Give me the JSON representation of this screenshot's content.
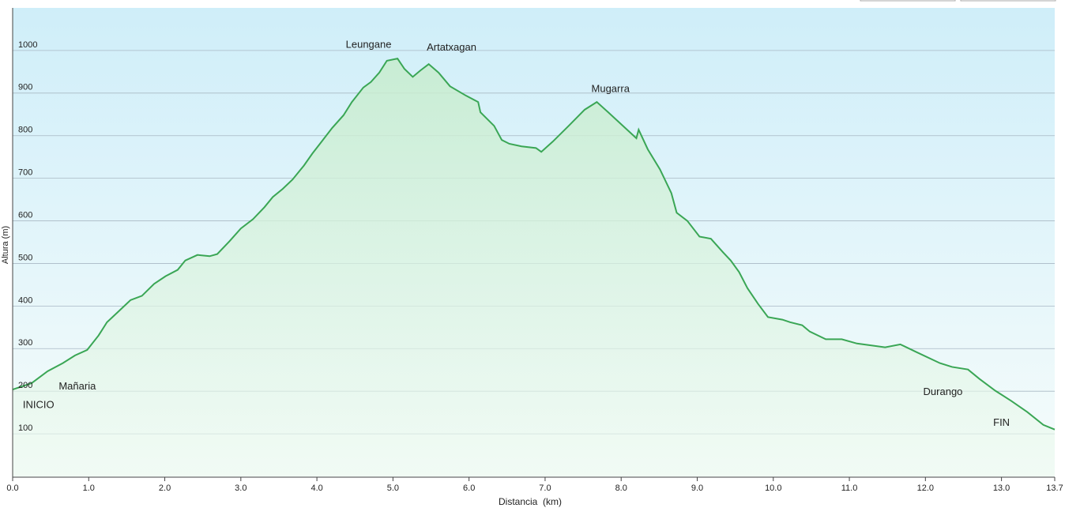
{
  "chart_data": {
    "type": "area",
    "x_label": "Distancia  (km)",
    "y_label": "Altura (m)",
    "xlim": [
      0,
      13.7
    ],
    "ylim": [
      0,
      1100
    ],
    "xticks": [
      {
        "value": 0,
        "label": "0.0"
      },
      {
        "value": 1,
        "label": "1.0"
      },
      {
        "value": 2,
        "label": "2.0"
      },
      {
        "value": 3,
        "label": "3.0"
      },
      {
        "value": 4,
        "label": "4.0"
      },
      {
        "value": 5,
        "label": "5.0"
      },
      {
        "value": 6,
        "label": "6.0"
      },
      {
        "value": 7,
        "label": "7.0"
      },
      {
        "value": 8,
        "label": "8.0"
      },
      {
        "value": 9,
        "label": "9.0"
      },
      {
        "value": 10,
        "label": "10.0"
      },
      {
        "value": 11,
        "label": "11.0"
      },
      {
        "value": 12,
        "label": "12.0"
      },
      {
        "value": 13,
        "label": "13.0"
      },
      {
        "value": 13.7,
        "label": "13.7"
      }
    ],
    "yticks": [
      100,
      200,
      300,
      400,
      500,
      600,
      700,
      800,
      900,
      1000
    ],
    "grid": true,
    "color": "#3aa655",
    "x": [
      0,
      0.25,
      0.46,
      0.66,
      0.82,
      0.98,
      1.13,
      1.24,
      1.39,
      1.55,
      1.7,
      1.86,
      2.01,
      2.17,
      2.27,
      2.43,
      2.59,
      2.69,
      2.85,
      3.0,
      3.16,
      3.31,
      3.42,
      3.55,
      3.68,
      3.83,
      3.94,
      4.04,
      4.2,
      4.35,
      4.46,
      4.61,
      4.71,
      4.82,
      4.92,
      5.06,
      5.15,
      5.26,
      5.36,
      5.47,
      5.6,
      5.75,
      5.96,
      6.12,
      6.15,
      6.33,
      6.43,
      6.53,
      6.69,
      6.88,
      6.95,
      7.1,
      7.31,
      7.52,
      7.68,
      7.83,
      8.2,
      8.23,
      8.35,
      8.51,
      8.66,
      8.73,
      8.87,
      9.03,
      9.18,
      9.34,
      9.44,
      9.55,
      9.66,
      9.8,
      9.93,
      10.12,
      10.22,
      10.38,
      10.48,
      10.69,
      10.9,
      11.1,
      11.31,
      11.47,
      11.67,
      11.88,
      12.19,
      12.35,
      12.56,
      12.71,
      12.92,
      13.13,
      13.34,
      13.55,
      13.7
    ],
    "values": [
      204,
      219,
      247,
      266,
      284,
      297,
      331,
      362,
      387,
      414,
      424,
      452,
      470,
      485,
      507,
      520,
      517,
      522,
      552,
      582,
      604,
      632,
      656,
      675,
      697,
      730,
      758,
      781,
      818,
      848,
      879,
      913,
      926,
      948,
      976,
      981,
      957,
      938,
      953,
      968,
      948,
      916,
      894,
      879,
      855,
      823,
      790,
      781,
      775,
      771,
      762,
      786,
      823,
      861,
      879,
      855,
      794,
      814,
      768,
      721,
      665,
      619,
      600,
      563,
      558,
      526,
      507,
      480,
      442,
      405,
      374,
      368,
      362,
      355,
      340,
      322,
      322,
      312,
      307,
      303,
      310,
      292,
      266,
      257,
      251,
      229,
      201,
      177,
      151,
      121,
      110
    ],
    "annotations": [
      {
        "text": "Leungane",
        "x": 4.68,
        "y": 1013
      },
      {
        "text": "Artatxagan",
        "x": 5.77,
        "y": 1006
      },
      {
        "text": "Mugarra",
        "x": 7.86,
        "y": 909
      },
      {
        "text": "Mañaria",
        "x": 0.85,
        "y": 210
      },
      {
        "text": "INICIO",
        "x": 0.34,
        "y": 167
      },
      {
        "text": "Durango",
        "x": 12.23,
        "y": 197
      },
      {
        "text": "FIN",
        "x": 13.0,
        "y": 125
      }
    ]
  }
}
